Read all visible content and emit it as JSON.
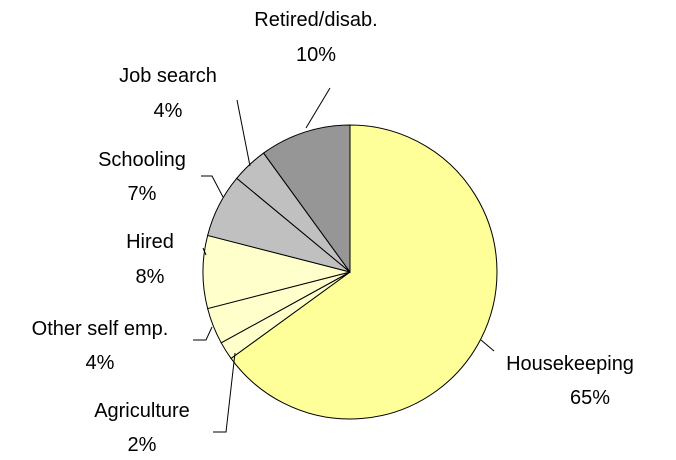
{
  "chart_data": {
    "type": "pie",
    "slices": [
      {
        "label": "Housekeeping",
        "value": 65,
        "value_label": "65%",
        "color": "#FFFF99"
      },
      {
        "label": "Agriculture",
        "value": 2,
        "value_label": "2%",
        "color": "#FFFFCC"
      },
      {
        "label": "Other self emp.",
        "value": 4,
        "value_label": "4%",
        "color": "#FFFFCC"
      },
      {
        "label": "Hired",
        "value": 8,
        "value_label": "8%",
        "color": "#FFFFCC"
      },
      {
        "label": "Schooling",
        "value": 7,
        "value_label": "7%",
        "color": "#C0C0C0"
      },
      {
        "label": "Job search",
        "value": 4,
        "value_label": "4%",
        "color": "#C0C0C0"
      },
      {
        "label": "Retired/disab.",
        "value": 10,
        "value_label": "10%",
        "color": "#969696"
      }
    ],
    "start_angle_deg": 0,
    "direction": "clockwise"
  }
}
